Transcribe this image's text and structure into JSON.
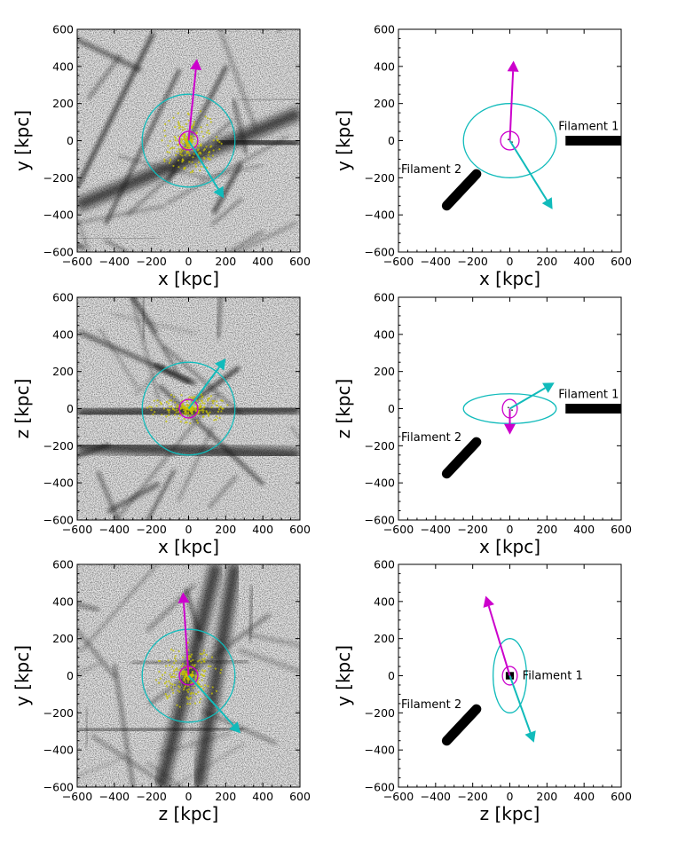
{
  "colors": {
    "major_axis": "#cc00cc",
    "minor_axis": "#11bbbb",
    "filament": "#000000",
    "particles": "#c8c400"
  },
  "chart_data": [
    {
      "type": "scatter",
      "panel": "top-left",
      "xlabel": "x [kpc]",
      "ylabel": "y [kpc]",
      "xlim": [
        -600,
        600
      ],
      "ylim": [
        -600,
        600
      ],
      "xticks": [
        "−600",
        "−400",
        "−200",
        "0",
        "200",
        "400",
        "600"
      ],
      "yticks": [
        "−600",
        "−400",
        "−200",
        "0",
        "200",
        "400",
        "600"
      ],
      "background": "projected dark matter density (grayscale)",
      "outer_circle": {
        "center": [
          0,
          0
        ],
        "radius": 250
      },
      "inner_circle": {
        "center": [
          0,
          0
        ],
        "radius": 50
      },
      "arrows": [
        {
          "color": "magenta",
          "from": [
            0,
            0
          ],
          "to": [
            45,
            440
          ]
        },
        {
          "color": "cyan",
          "from": [
            0,
            0
          ],
          "to": [
            190,
            -310
          ]
        }
      ],
      "filaments": []
    },
    {
      "type": "scatter",
      "panel": "top-right",
      "xlabel": "x [kpc]",
      "ylabel": "y [kpc]",
      "xlim": [
        -600,
        600
      ],
      "ylim": [
        -600,
        600
      ],
      "xticks": [
        "−600",
        "−400",
        "−200",
        "0",
        "200",
        "400",
        "600"
      ],
      "yticks": [
        "−600",
        "−400",
        "−200",
        "0",
        "200",
        "400",
        "600"
      ],
      "ellipses": [
        {
          "color": "cyan",
          "center": [
            0,
            0
          ],
          "rx": 250,
          "ry": 200
        },
        {
          "color": "magenta",
          "center": [
            0,
            0
          ],
          "rx": 50,
          "ry": 50
        }
      ],
      "arrows": [
        {
          "color": "magenta",
          "from": [
            0,
            0
          ],
          "to": [
            20,
            430
          ]
        },
        {
          "color": "cyan",
          "from": [
            0,
            0
          ],
          "to": [
            230,
            -370
          ]
        }
      ],
      "filaments": [
        {
          "name": "Filament 1",
          "from": [
            300,
            0
          ],
          "to": [
            600,
            0
          ]
        },
        {
          "name": "Filament 2",
          "from": [
            -180,
            -180
          ],
          "to": [
            -340,
            -350
          ]
        }
      ]
    },
    {
      "type": "scatter",
      "panel": "middle-left",
      "xlabel": "x [kpc]",
      "ylabel": "z [kpc]",
      "xlim": [
        -600,
        600
      ],
      "ylim": [
        -600,
        600
      ],
      "xticks": [
        "−600",
        "−400",
        "−200",
        "0",
        "200",
        "400",
        "600"
      ],
      "yticks": [
        "−600",
        "−400",
        "−200",
        "0",
        "200",
        "400",
        "600"
      ],
      "background": "projected dark matter density (grayscale)",
      "outer_circle": {
        "center": [
          0,
          0
        ],
        "radius": 250
      },
      "inner_circle": {
        "center": [
          0,
          0
        ],
        "radius": 50
      },
      "arrows": [
        {
          "color": "cyan",
          "from": [
            0,
            0
          ],
          "to": [
            200,
            270
          ]
        }
      ],
      "filaments": []
    },
    {
      "type": "scatter",
      "panel": "middle-right",
      "xlabel": "x [kpc]",
      "ylabel": "z [kpc]",
      "xlim": [
        -600,
        600
      ],
      "ylim": [
        -600,
        600
      ],
      "xticks": [
        "−600",
        "−400",
        "−200",
        "0",
        "200",
        "400",
        "600"
      ],
      "yticks": [
        "−600",
        "−400",
        "−200",
        "0",
        "200",
        "400",
        "600"
      ],
      "ellipses": [
        {
          "color": "cyan",
          "center": [
            0,
            0
          ],
          "rx": 250,
          "ry": 80
        },
        {
          "color": "magenta",
          "center": [
            0,
            0
          ],
          "rx": 40,
          "ry": 50
        }
      ],
      "arrows": [
        {
          "color": "magenta",
          "from": [
            0,
            0
          ],
          "to": [
            0,
            -140
          ]
        },
        {
          "color": "cyan",
          "from": [
            0,
            0
          ],
          "to": [
            240,
            140
          ]
        }
      ],
      "filaments": [
        {
          "name": "Filament 1",
          "from": [
            300,
            0
          ],
          "to": [
            600,
            0
          ]
        },
        {
          "name": "Filament 2",
          "from": [
            -180,
            -180
          ],
          "to": [
            -340,
            -350
          ]
        }
      ]
    },
    {
      "type": "scatter",
      "panel": "bottom-left",
      "xlabel": "z [kpc]",
      "ylabel": "y [kpc]",
      "xlim": [
        -600,
        600
      ],
      "ylim": [
        -600,
        600
      ],
      "xticks": [
        "−600",
        "−400",
        "−200",
        "0",
        "200",
        "400",
        "600"
      ],
      "yticks": [
        "−600",
        "−400",
        "−200",
        "0",
        "200",
        "400",
        "600"
      ],
      "background": "projected dark matter density (grayscale)",
      "outer_circle": {
        "center": [
          0,
          0
        ],
        "radius": 250
      },
      "inner_circle": {
        "center": [
          0,
          0
        ],
        "radius": 50
      },
      "arrows": [
        {
          "color": "magenta",
          "from": [
            0,
            0
          ],
          "to": [
            -30,
            450
          ]
        },
        {
          "color": "cyan",
          "from": [
            0,
            0
          ],
          "to": [
            280,
            -310
          ]
        }
      ],
      "filaments": []
    },
    {
      "type": "scatter",
      "panel": "bottom-right",
      "xlabel": "z [kpc]",
      "ylabel": "y [kpc]",
      "xlim": [
        -600,
        600
      ],
      "ylim": [
        -600,
        600
      ],
      "xticks": [
        "−600",
        "−400",
        "−200",
        "0",
        "200",
        "400",
        "600"
      ],
      "yticks": [
        "−600",
        "−400",
        "−200",
        "0",
        "200",
        "400",
        "600"
      ],
      "ellipses": [
        {
          "color": "cyan",
          "center": [
            0,
            0
          ],
          "rx": 90,
          "ry": 200
        },
        {
          "color": "magenta",
          "center": [
            0,
            0
          ],
          "rx": 40,
          "ry": 50
        }
      ],
      "arrows": [
        {
          "color": "magenta",
          "from": [
            0,
            0
          ],
          "to": [
            -130,
            430
          ]
        },
        {
          "color": "cyan",
          "from": [
            0,
            0
          ],
          "to": [
            130,
            -360
          ]
        }
      ],
      "filaments": [
        {
          "name": "Filament 1",
          "from": [
            -20,
            0
          ],
          "to": [
            20,
            0
          ]
        },
        {
          "name": "Filament 2",
          "from": [
            -180,
            -180
          ],
          "to": [
            -340,
            -350
          ]
        }
      ]
    }
  ]
}
